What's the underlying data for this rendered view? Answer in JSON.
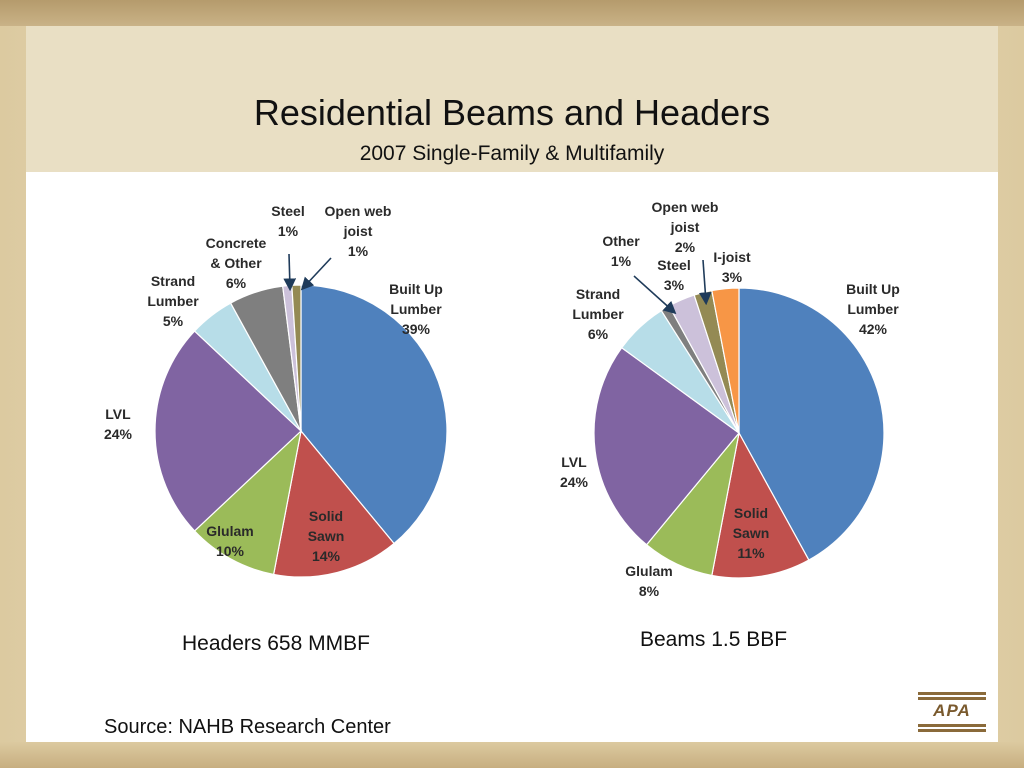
{
  "title": "Residential Beams and Headers",
  "subtitle": "2007 Single-Family & Multifamily",
  "source": "Source:  NAHB Research Center",
  "logo_text": "APA",
  "chart_data": [
    {
      "type": "pie",
      "caption": "Headers  658 MMBF",
      "slices": [
        {
          "label": [
            "Built Up",
            "Lumber"
          ],
          "value": 39,
          "pct": "39%",
          "color": "#4f81bd"
        },
        {
          "label": [
            "Solid",
            "Sawn"
          ],
          "value": 14,
          "pct": "14%",
          "color": "#c0504d"
        },
        {
          "label": [
            "Glulam"
          ],
          "value": 10,
          "pct": "10%",
          "color": "#9bbb59"
        },
        {
          "label": [
            "LVL"
          ],
          "value": 24,
          "pct": "24%",
          "color": "#8064a2"
        },
        {
          "label": [
            "Strand",
            "Lumber"
          ],
          "value": 5,
          "pct": "5%",
          "color": "#b7dde8"
        },
        {
          "label": [
            "Concrete",
            "& Other"
          ],
          "value": 6,
          "pct": "6%",
          "color": "#7f7f7f"
        },
        {
          "label": [
            "Steel"
          ],
          "value": 1,
          "pct": "1%",
          "color": "#ccc1da"
        },
        {
          "label": [
            "Open web",
            "joist"
          ],
          "value": 1,
          "pct": "1%",
          "color": "#948a54"
        }
      ]
    },
    {
      "type": "pie",
      "caption": "Beams  1.5 BBF",
      "slices": [
        {
          "label": [
            "Built Up",
            "Lumber"
          ],
          "value": 42,
          "pct": "42%",
          "color": "#4f81bd"
        },
        {
          "label": [
            "Solid",
            "Sawn"
          ],
          "value": 11,
          "pct": "11%",
          "color": "#c0504d"
        },
        {
          "label": [
            "Glulam"
          ],
          "value": 8,
          "pct": "8%",
          "color": "#9bbb59"
        },
        {
          "label": [
            "LVL"
          ],
          "value": 24,
          "pct": "24%",
          "color": "#8064a2"
        },
        {
          "label": [
            "Strand",
            "Lumber"
          ],
          "value": 6,
          "pct": "6%",
          "color": "#b7dde8"
        },
        {
          "label": [
            "Other"
          ],
          "value": 1,
          "pct": "1%",
          "color": "#7f7f7f"
        },
        {
          "label": [
            "Steel"
          ],
          "value": 3,
          "pct": "3%",
          "color": "#ccc1da"
        },
        {
          "label": [
            "Open web",
            "joist"
          ],
          "value": 2,
          "pct": "2%",
          "color": "#948a54"
        },
        {
          "label": [
            "I-joist"
          ],
          "value": 3,
          "pct": "3%",
          "color": "#f79646"
        }
      ]
    }
  ]
}
